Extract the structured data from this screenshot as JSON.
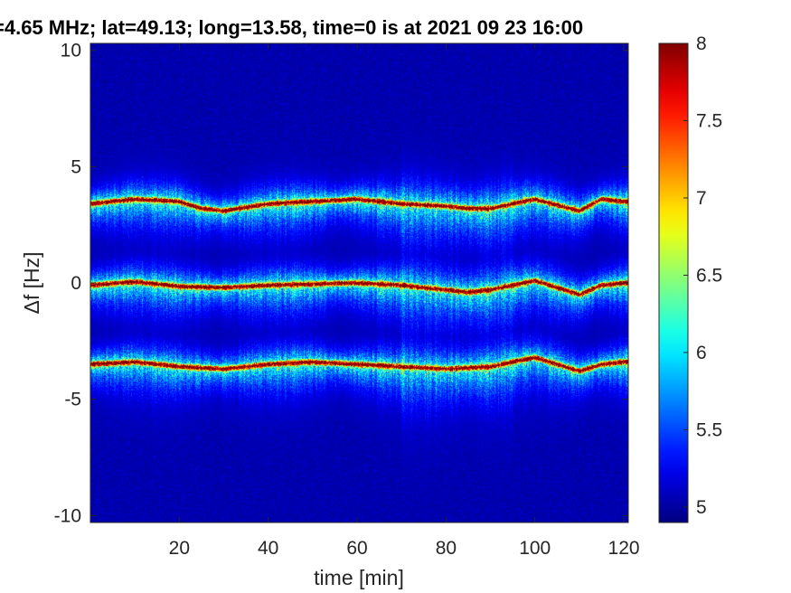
{
  "chart_data": {
    "type": "heatmap",
    "title": "=4.65 MHz;  lat=49.13; long=13.58, time=0 is at 2021 09 23 16:00",
    "xlabel": "time [min]",
    "ylabel": "Δf [Hz]",
    "xlim": [
      0,
      121
    ],
    "ylim": [
      -10.3,
      10.3
    ],
    "xticks": [
      20,
      40,
      60,
      80,
      100,
      120
    ],
    "yticks": [
      -10,
      -5,
      0,
      5,
      10
    ],
    "xtick_labels": [
      "20",
      "40",
      "60",
      "80",
      "100",
      "120"
    ],
    "ytick_labels": [
      "-10",
      "-5",
      "0",
      "5",
      "10"
    ],
    "colorbar": {
      "range": [
        4.9,
        8
      ],
      "ticks": [
        5,
        5.5,
        6,
        6.5,
        7,
        7.5,
        8
      ],
      "tick_labels": [
        "5",
        "5.5",
        "6",
        "6.5",
        "7",
        "7.5",
        "8"
      ],
      "colormap": "jet"
    },
    "background_value": 5.0,
    "series": [
      {
        "time": [
          0,
          10,
          20,
          25,
          30,
          40,
          50,
          60,
          70,
          80,
          85,
          90,
          100,
          110,
          115,
          120
        ],
        "df": [
          3.4,
          3.6,
          3.5,
          3.2,
          3.1,
          3.4,
          3.5,
          3.6,
          3.4,
          3.3,
          3.2,
          3.2,
          3.6,
          3.1,
          3.6,
          3.5
        ]
      },
      {
        "time": [
          0,
          10,
          20,
          30,
          40,
          50,
          60,
          70,
          80,
          85,
          90,
          100,
          110,
          115,
          120
        ],
        "df": [
          -0.1,
          0.05,
          -0.15,
          -0.2,
          -0.1,
          -0.05,
          0.0,
          -0.1,
          -0.3,
          -0.4,
          -0.3,
          0.1,
          -0.5,
          -0.1,
          0.0
        ]
      },
      {
        "time": [
          0,
          10,
          20,
          30,
          40,
          50,
          60,
          70,
          80,
          90,
          100,
          110,
          115,
          120
        ],
        "df": [
          -3.5,
          -3.4,
          -3.6,
          -3.7,
          -3.5,
          -3.4,
          -3.5,
          -3.6,
          -3.7,
          -3.6,
          -3.2,
          -3.8,
          -3.5,
          -3.4
        ]
      }
    ]
  }
}
